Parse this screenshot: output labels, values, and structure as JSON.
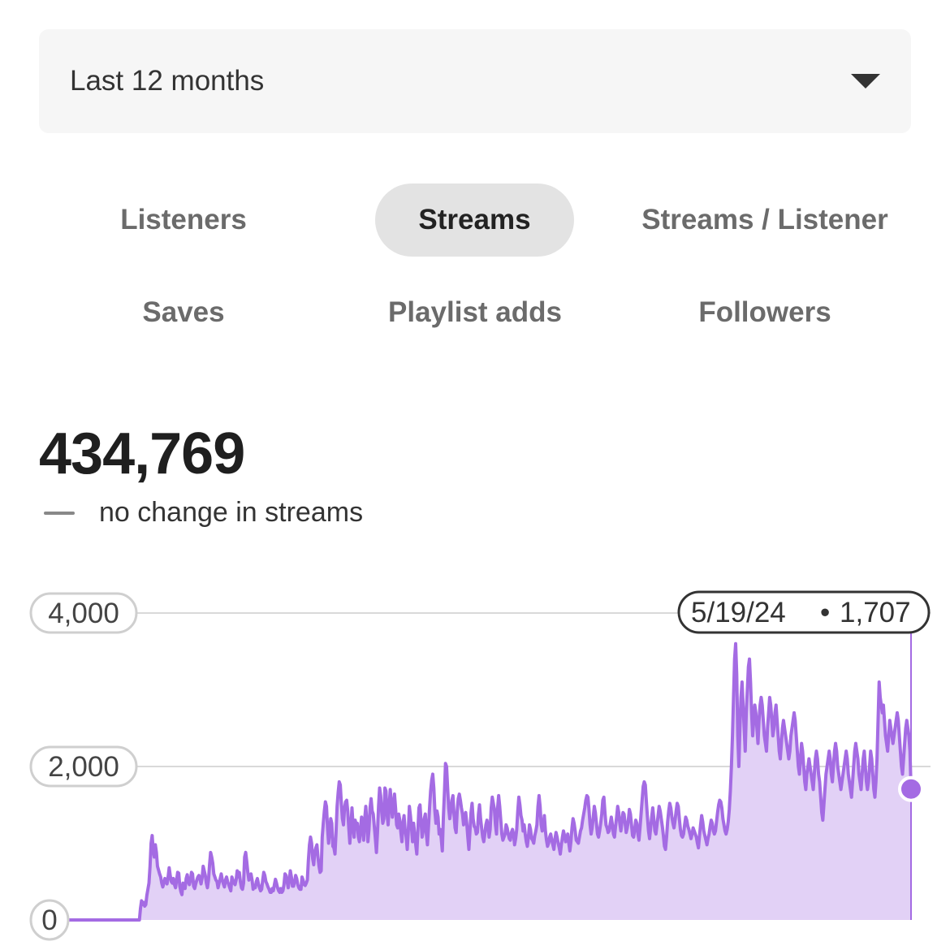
{
  "date_range": {
    "selected": "Last 12 months",
    "icon": "caret-down-icon"
  },
  "metric_tabs": [
    {
      "label": "Listeners",
      "active": false
    },
    {
      "label": "Streams",
      "active": true
    },
    {
      "label": "Streams / Listener",
      "active": false
    },
    {
      "label": "Saves",
      "active": false
    },
    {
      "label": "Playlist adds",
      "active": false
    },
    {
      "label": "Followers",
      "active": false
    }
  ],
  "summary": {
    "total": "434,769",
    "change_text": "no change in streams"
  },
  "colors": {
    "line": "#a46be3",
    "fill": "#e2d1f6",
    "grid": "#d9d9d9",
    "marker": "#a46be3"
  },
  "tooltip": {
    "date": "5/19/24",
    "separator": "•",
    "value_label": "1,707"
  },
  "chart_data": {
    "type": "area",
    "ylim": [
      0,
      4000
    ],
    "y_ticks": [
      "0",
      "2,000",
      "4,000"
    ],
    "grid": true,
    "series": [
      {
        "values": [
          0,
          0,
          0,
          0,
          0,
          0,
          0,
          0,
          0,
          0,
          0,
          0,
          0,
          0,
          0,
          0,
          0,
          0,
          0,
          0,
          0,
          0,
          0,
          0,
          0,
          0,
          0,
          0,
          0,
          0,
          0,
          0,
          0,
          0,
          0,
          0,
          0,
          0,
          0,
          0,
          0,
          0,
          0,
          0,
          0,
          0,
          0,
          0,
          0,
          0,
          0,
          0,
          0,
          0,
          0,
          0,
          0,
          0,
          0,
          0,
          0,
          0,
          0,
          0,
          0,
          0,
          0,
          0,
          150,
          250,
          200,
          230,
          180,
          200,
          320,
          400,
          480,
          700,
          1000,
          1100,
          900,
          820,
          980,
          880,
          700,
          650,
          600,
          560,
          480,
          430,
          480,
          540,
          520,
          470,
          560,
          680,
          580,
          500,
          480,
          540,
          460,
          420,
          520,
          620,
          610,
          440,
          370,
          330,
          480,
          460,
          410,
          540,
          590,
          500,
          460,
          520,
          620,
          600,
          440,
          410,
          470,
          520,
          560,
          580,
          530,
          470,
          550,
          700,
          640,
          580,
          480,
          420,
          520,
          720,
          880,
          820,
          740,
          600,
          560,
          520,
          500,
          420,
          480,
          540,
          600,
          520,
          470,
          430,
          520,
          560,
          500,
          460,
          420,
          380,
          560,
          520,
          480,
          460,
          520,
          640,
          560,
          620,
          500,
          420,
          400,
          480,
          820,
          880,
          760,
          620,
          520,
          560,
          600,
          520,
          400,
          450,
          420,
          500,
          540,
          470,
          420,
          380,
          400,
          520,
          620,
          580,
          500,
          470,
          430,
          400,
          360,
          360,
          410,
          380,
          460,
          530,
          480,
          420,
          380,
          360,
          410,
          360,
          380,
          460,
          600,
          580,
          500,
          420,
          520,
          640,
          560,
          440,
          440,
          500,
          580,
          540,
          460,
          420,
          400,
          400,
          560,
          520,
          460,
          450,
          480,
          520,
          780,
          980,
          1080,
          1000,
          800,
          720,
          880,
          940,
          980,
          820,
          700,
          620,
          640,
          1080,
          1260,
          1420,
          1540,
          1480,
          1200,
          1000,
          1140,
          1320,
          1260,
          960,
          940,
          860,
          1140,
          1480,
          1660,
          1800,
          1760,
          1520,
          1320,
          1240,
          1460,
          1540,
          1560,
          1420,
          1200,
          1000,
          1220,
          1460,
          1240,
          1080,
          1300,
          1240,
          1260,
          1080,
          1020,
          1180,
          1340,
          1180,
          1040,
          1320,
          1480,
          1260,
          1020,
          1180,
          1460,
          1580,
          1420,
          1380,
          1220,
          1060,
          880,
          1140,
          1480,
          1720,
          1620,
          1400,
          1260,
          1320,
          1720,
          1680,
          1380,
          1240,
          1480,
          1700,
          1520,
          1340,
          1480,
          1640,
          1460,
          1240,
          1200,
          1380,
          1300,
          1140,
          1020,
          1260,
          1360,
          1180,
          1080,
          920,
          1160,
          1480,
          1360,
          1200,
          1020,
          1260,
          1120,
          980,
          860,
          1160,
          1460,
          1500,
          1280,
          1080,
          1160,
          1320,
          1380,
          1120,
          980,
          1220,
          1460,
          1680,
          1820,
          1900,
          1720,
          1420,
          1260,
          1420,
          1340,
          1120,
          1180,
          1060,
          900,
          1340,
          1660,
          2040,
          2000,
          1720,
          1460,
          1320,
          1420,
          1560,
          1620,
          1380,
          1200,
          1140,
          1420,
          1580,
          1640,
          1560,
          1460,
          1380,
          1240,
          1300,
          1400,
          1260,
          1080,
          920,
          1160,
          1400,
          1520,
          1320,
          1220,
          1200,
          1120,
          1140,
          1380,
          1500,
          1320,
          1200,
          1080,
          1020,
          1120,
          1240,
          1300,
          1220,
          1080,
          1180,
          1460,
          1600,
          1520,
          1440,
          1240,
          1120,
          1460,
          1620,
          1480,
          1300,
          1120,
          1040,
          1080,
          1120,
          1240,
          1200,
          1120,
          1060,
          1040,
          1140,
          1180,
          1120,
          980,
          1060,
          1180,
          1420,
          1600,
          1500,
          1360,
          1300,
          1160,
          1240,
          1120,
          1020,
          960,
          1080,
          1240,
          1180,
          1060,
          1040,
          1000,
          1100,
          1160,
          1240,
          1480,
          1620,
          1480,
          1240,
          1160,
          1220,
          1360,
          1160,
          1040,
          960,
          1000,
          1080,
          1120,
          1040,
          980,
          920,
          1060,
          1140,
          1080,
          1000,
          940,
          860,
          980,
          1080,
          1160,
          1100,
          1020,
          1040,
          1120,
          1000,
          900,
          1020,
          1200,
          1320,
          1260,
          1160,
          1040,
          1020,
          1000,
          1080,
          1160,
          1200,
          1300,
          1380,
          1460,
          1560,
          1620,
          1600,
          1440,
          1240,
          1120,
          1200,
          1340,
          1480,
          1400,
          1260,
          1120,
          1080,
          1160,
          1260,
          1380,
          1560,
          1600,
          1400,
          1240,
          1200,
          1140,
          1160,
          1260,
          1340,
          1240,
          1120,
          1080,
          1220,
          1340,
          1480,
          1400,
          1260,
          1160,
          1280,
          1400,
          1380,
          1260,
          1140,
          1200,
          1300,
          1440,
          1380,
          1240,
          1100,
          1080,
          1180,
          1300,
          1260,
          1120,
          1040,
          1200,
          1380,
          1560,
          1740,
          1800,
          1760,
          1540,
          1340,
          1160,
          1060,
          1200,
          1340,
          1460,
          1320,
          1160,
          1120,
          1240,
          1360,
          1480,
          1420,
          1320,
          1220,
          1100,
          960,
          920,
          1080,
          1280,
          1420,
          1520,
          1460,
          1340,
          1260,
          1200,
          1300,
          1420,
          1520,
          1480,
          1320,
          1180,
          1100,
          1080,
          1120,
          1240,
          1340,
          1300,
          1220,
          1180,
          1120,
          1060,
          1120,
          1200,
          1160,
          1120,
          1080,
          1000,
          940,
          1100,
          1240,
          1360,
          1280,
          1160,
          1100,
          1040,
          980,
          1060,
          1120,
          1220,
          1300,
          1260,
          1160,
          1120,
          1160,
          1280,
          1400,
          1500,
          1560,
          1540,
          1460,
          1320,
          1240,
          1160,
          1120,
          1180,
          1280,
          1440,
          1680,
          2000,
          2400,
          2900,
          3400,
          3600,
          3200,
          2400,
          2000,
          2500,
          2900,
          3100,
          2800,
          2500,
          2200,
          2700,
          3000,
          3300,
          3400,
          3100,
          2700,
          2400,
          2600,
          2800,
          2700,
          2500,
          2300,
          2600,
          2800,
          2900,
          2800,
          2600,
          2400,
          2300,
          2200,
          2500,
          2700,
          2900,
          2800,
          2600,
          2400,
          2500,
          2700,
          2800,
          2600,
          2400,
          2200,
          2100,
          2300,
          2500,
          2600,
          2500,
          2400,
          2300,
          2200,
          2100,
          2200,
          2400,
          2500,
          2600,
          2700,
          2600,
          2400,
          2200,
          2000,
          1900,
          2100,
          2300,
          2200,
          2000,
          1800,
          1700,
          1900,
          2000,
          2100,
          2000,
          1900,
          1800,
          1700,
          1900,
          2100,
          2200,
          2100,
          1900,
          1800,
          1600,
          1400,
          1300,
          1500,
          1700,
          1900,
          2000,
          2100,
          2200,
          2100,
          1900,
          1800,
          2000,
          2200,
          2300,
          2200,
          2000,
          1900,
          1800,
          1700,
          1800,
          1900,
          2000,
          2100,
          2200,
          2100,
          1900,
          1800,
          1700,
          1600,
          1800,
          2000,
          2200,
          2300,
          2200,
          2100,
          1900,
          1800,
          1700,
          1900,
          2100,
          2200,
          2000,
          1800,
          1700,
          1800,
          2000,
          2200,
          2100,
          1900,
          1700,
          1600,
          1800,
          2100,
          2600,
          3100,
          2900,
          2800,
          2700,
          2800,
          2600,
          2400,
          2300,
          2200,
          2400,
          2600,
          2500,
          2400,
          2300,
          2400,
          2500,
          2600,
          2700,
          2600,
          2400,
          2200,
          2000,
          1900,
          2100,
          2300,
          2500,
          2600,
          2500,
          2400,
          2200,
          1707
        ]
      }
    ],
    "highlight": {
      "date": "5/19/24",
      "value": 1707
    }
  }
}
